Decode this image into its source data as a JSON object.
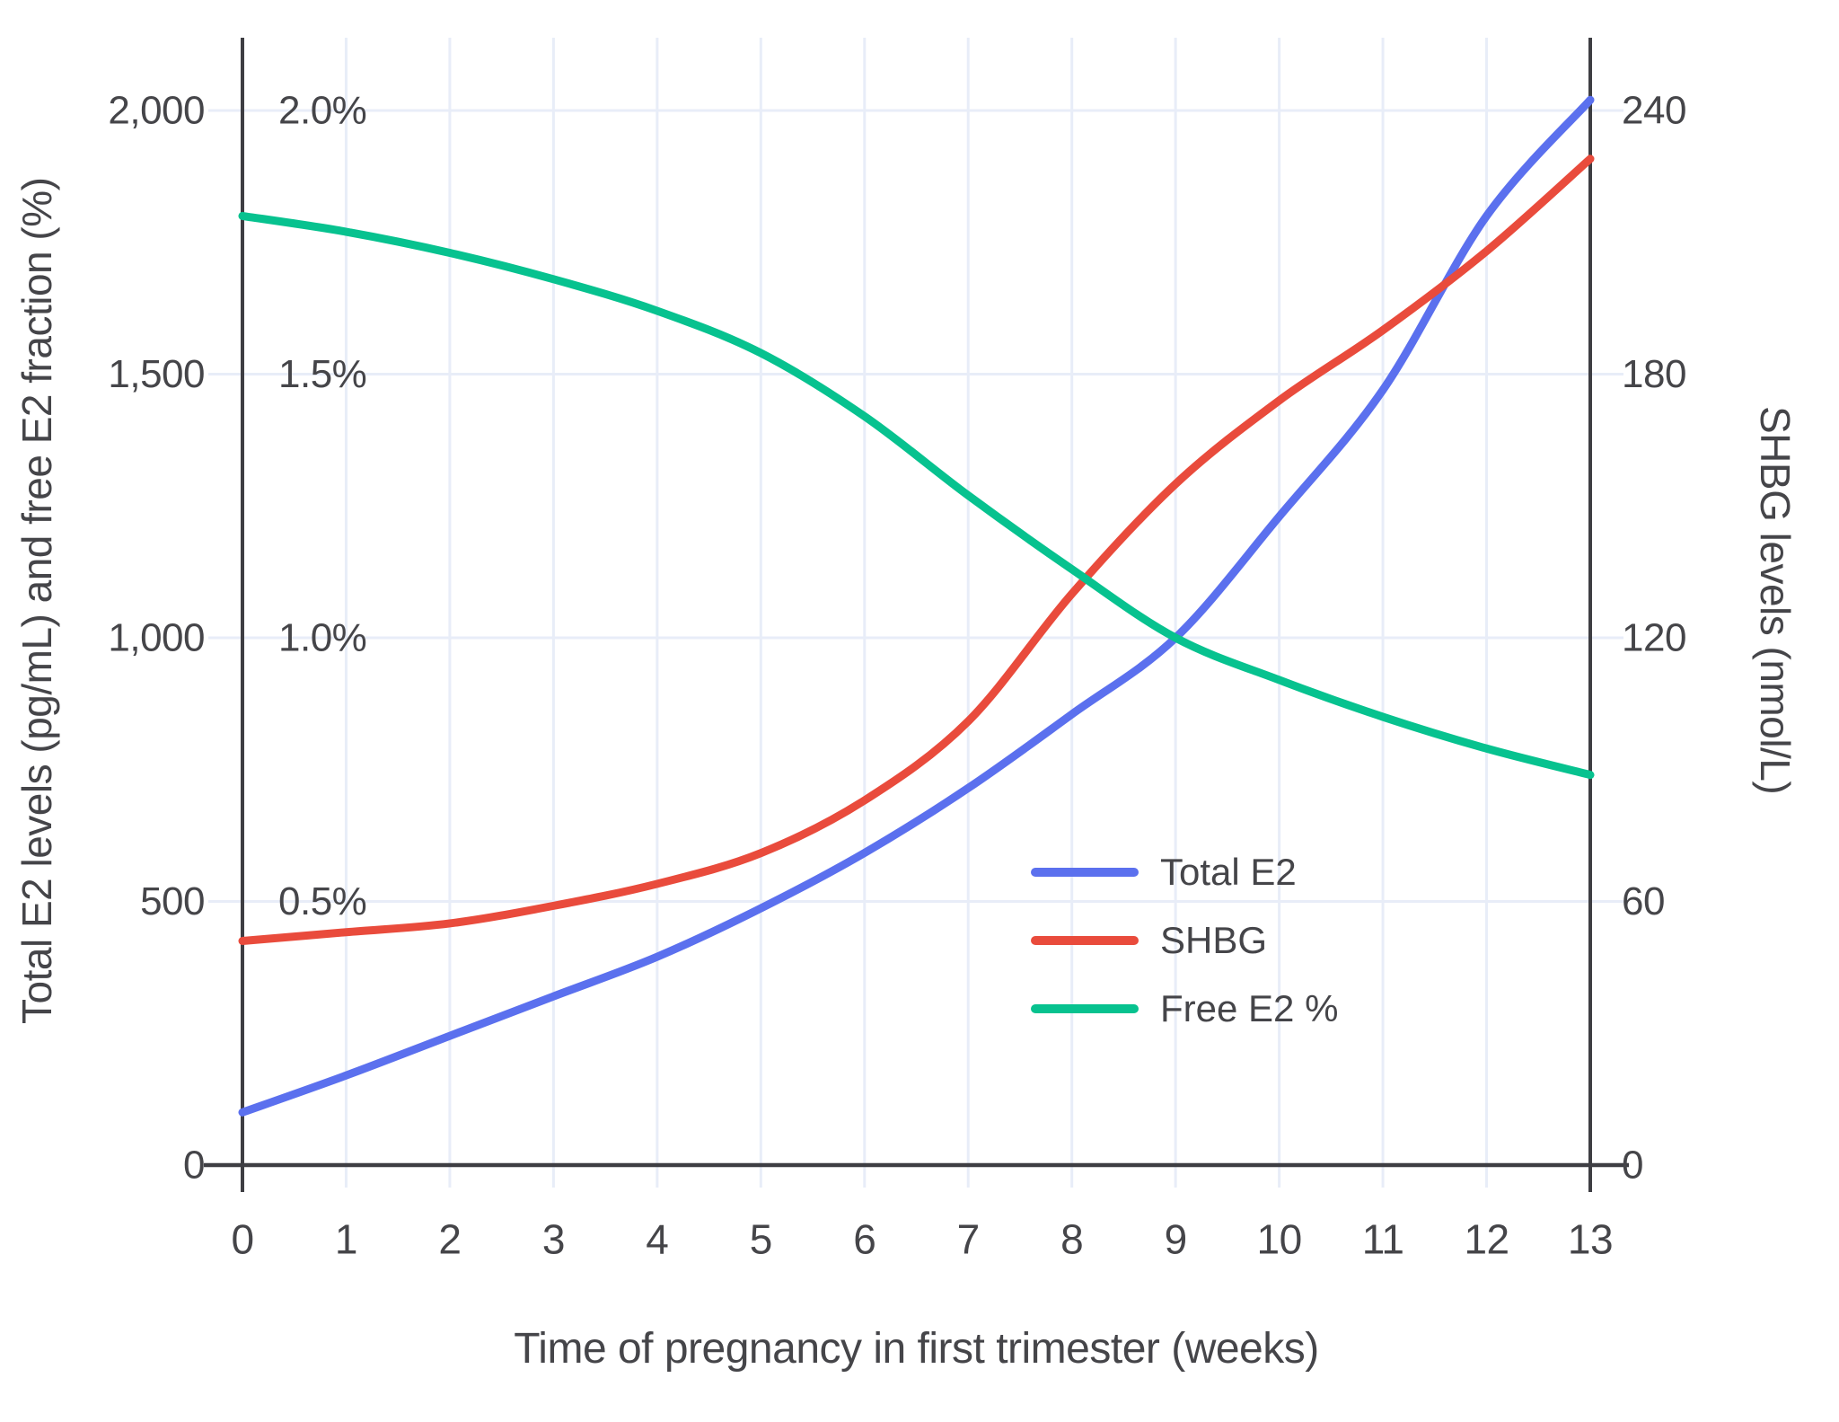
{
  "chart_data": {
    "type": "line",
    "title": "",
    "xlabel": "Time of pregnancy in first trimester (weeks)",
    "ylabel_left": "Total E2 levels (pg/mL) and free E2 fraction (%)",
    "ylabel_right": "SHBG levels (nmol/L)",
    "x": [
      0,
      1,
      2,
      3,
      4,
      5,
      6,
      7,
      8,
      9,
      10,
      11,
      12,
      13
    ],
    "x_tick_labels": [
      "0",
      "1",
      "2",
      "3",
      "4",
      "5",
      "6",
      "7",
      "8",
      "9",
      "10",
      "11",
      "12",
      "13"
    ],
    "left_axis": {
      "range": [
        0,
        2000
      ],
      "ticks": [
        {
          "value": 0,
          "label": "0"
        },
        {
          "value": 500,
          "label": "500"
        },
        {
          "value": 1000,
          "label": "1,000"
        },
        {
          "value": 1500,
          "label": "1,500"
        },
        {
          "value": 2000,
          "label": "2,000"
        }
      ]
    },
    "percent_axis": {
      "range": [
        0,
        2.0
      ],
      "ticks": [
        {
          "value": 0.5,
          "label": "0.5%"
        },
        {
          "value": 1.0,
          "label": "1.0%"
        },
        {
          "value": 1.5,
          "label": "1.5%"
        },
        {
          "value": 2.0,
          "label": "2.0%"
        }
      ]
    },
    "right_axis": {
      "range": [
        0,
        240
      ],
      "ticks": [
        {
          "value": 0,
          "label": "0"
        },
        {
          "value": 60,
          "label": "60"
        },
        {
          "value": 120,
          "label": "120"
        },
        {
          "value": 180,
          "label": "180"
        },
        {
          "value": 240,
          "label": "240"
        }
      ]
    },
    "series": [
      {
        "name": "Total E2",
        "color": "#5B70EE",
        "axis": "left",
        "units": "pg/mL",
        "values": [
          100,
          170,
          245,
          320,
          395,
          487,
          592,
          715,
          855,
          1000,
          1230,
          1470,
          1800,
          2020
        ]
      },
      {
        "name": "SHBG",
        "color": "#E94B3C",
        "axis": "right",
        "units": "nmol/L",
        "values": [
          51,
          53,
          55,
          59,
          64,
          71,
          83,
          101,
          130,
          155,
          174,
          190,
          208,
          229
        ]
      },
      {
        "name": "Free E2 %",
        "color": "#07C28F",
        "axis": "percent",
        "units": "%",
        "values": [
          1.8,
          1.77,
          1.73,
          1.68,
          1.62,
          1.54,
          1.42,
          1.27,
          1.13,
          1.0,
          0.92,
          0.85,
          0.79,
          0.74
        ]
      }
    ],
    "grid": true,
    "legend_position": "inside right-center"
  },
  "colors": {
    "grid": "#E8EDF8",
    "axis": "#3E3E43",
    "text": "#454549",
    "background": "#FFFFFF"
  }
}
